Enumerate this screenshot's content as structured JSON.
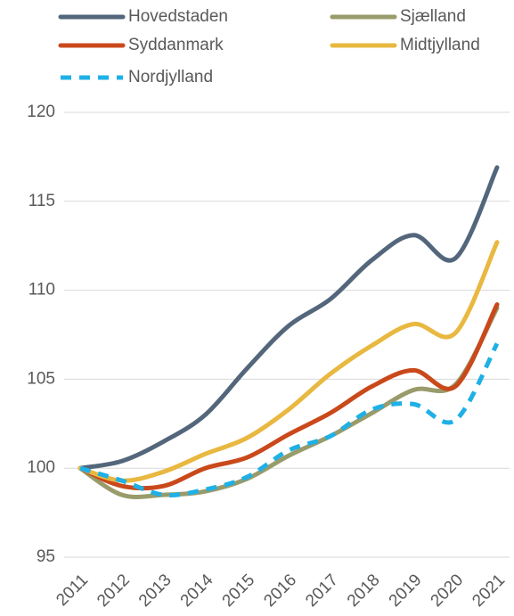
{
  "chart_data": {
    "type": "line",
    "x": [
      "2011",
      "2012",
      "2013",
      "2014",
      "2015",
      "2016",
      "2017",
      "2018",
      "2019",
      "2020",
      "2021"
    ],
    "series": [
      {
        "name": "Hovedstaden",
        "color": "#53667b",
        "values": [
          100,
          100.4,
          101.5,
          103,
          105.6,
          108,
          109.5,
          111.7,
          113.1,
          111.8,
          116.9
        ]
      },
      {
        "name": "Sjælland",
        "color": "#9a9b6b",
        "values": [
          100,
          98.5,
          98.5,
          98.7,
          99.4,
          100.7,
          101.8,
          103.1,
          104.4,
          104.7,
          109
        ]
      },
      {
        "name": "Syddanmark",
        "color": "#c9491b",
        "values": [
          100,
          99,
          99,
          100,
          100.6,
          101.9,
          103.1,
          104.6,
          105.5,
          104.6,
          109.2
        ]
      },
      {
        "name": "Midtjylland",
        "color": "#e8b840",
        "values": [
          100,
          99.3,
          99.8,
          100.8,
          101.7,
          103.3,
          105.3,
          106.9,
          108.1,
          107.6,
          112.7
        ]
      },
      {
        "name": "Nordjylland",
        "color": "#1fb0e6",
        "dashed": true,
        "values": [
          100,
          99.3,
          98.5,
          98.8,
          99.5,
          101,
          101.8,
          103.3,
          103.6,
          102.7,
          107
        ]
      }
    ],
    "ylim": [
      95,
      120
    ],
    "yticks": [
      95,
      100,
      105,
      110,
      115,
      120
    ],
    "grid": true,
    "legend": "top"
  }
}
